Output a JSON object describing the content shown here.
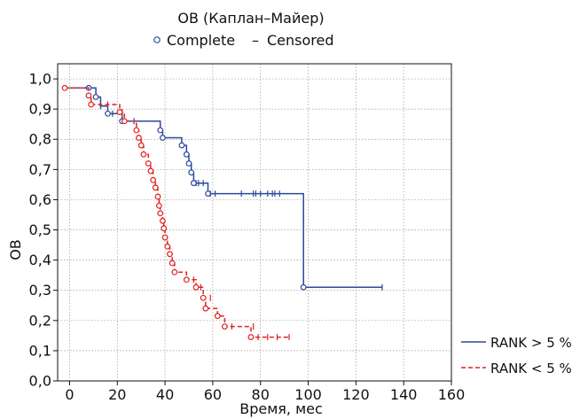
{
  "chart_data": {
    "type": "line",
    "title": "ОВ (Каплан–Майер)",
    "legend_top": {
      "complete_marker": "○",
      "complete_label": "Complete",
      "censored_marker": "–",
      "censored_label": "Censored"
    },
    "xlabel": "Время, мес",
    "ylabel": "ОВ",
    "xlim": [
      -5,
      160
    ],
    "ylim": [
      0,
      1.05
    ],
    "x_ticks": [
      0,
      20,
      40,
      60,
      80,
      100,
      120,
      140,
      160
    ],
    "x_tick_labels": [
      "0",
      "20",
      "40",
      "60",
      "80",
      "100",
      "120",
      "140",
      "160"
    ],
    "y_ticks": [
      0,
      0.1,
      0.2,
      0.3,
      0.4,
      0.5,
      0.6,
      0.7,
      0.8,
      0.9,
      1.0
    ],
    "y_tick_labels": [
      "0,0",
      "0,1",
      "0,2",
      "0,3",
      "0,4",
      "0,5",
      "0,6",
      "0,7",
      "0,8",
      "0,9",
      "1,0"
    ],
    "grid": true,
    "legend_position": "bottom-right",
    "series": [
      {
        "name": "RANK > 5 %",
        "color": "#2b4a9a",
        "dash": "solid",
        "steps": [
          [
            0,
            0.97
          ],
          [
            11,
            0.94
          ],
          [
            13,
            0.91
          ],
          [
            16,
            0.885
          ],
          [
            21,
            0.885
          ],
          [
            22,
            0.86
          ],
          [
            38,
            0.83
          ],
          [
            39,
            0.805
          ],
          [
            47,
            0.78
          ],
          [
            49,
            0.75
          ],
          [
            50,
            0.72
          ],
          [
            51,
            0.69
          ],
          [
            52,
            0.655
          ],
          [
            56,
            0.655
          ],
          [
            58,
            0.62
          ],
          [
            98,
            0.62
          ],
          [
            98,
            0.31
          ],
          [
            131,
            0.31
          ]
        ],
        "events": [
          [
            8,
            0.97
          ],
          [
            11,
            0.94
          ],
          [
            16,
            0.885
          ],
          [
            22,
            0.86
          ],
          [
            38,
            0.83
          ],
          [
            39,
            0.805
          ],
          [
            47,
            0.78
          ],
          [
            49,
            0.75
          ],
          [
            50,
            0.72
          ],
          [
            51,
            0.69
          ],
          [
            52,
            0.655
          ],
          [
            58,
            0.62
          ],
          [
            98,
            0.31
          ]
        ],
        "censored": [
          [
            13,
            0.91
          ],
          [
            18,
            0.885
          ],
          [
            27,
            0.86
          ],
          [
            53,
            0.655
          ],
          [
            54,
            0.655
          ],
          [
            56,
            0.655
          ],
          [
            59,
            0.62
          ],
          [
            61,
            0.62
          ],
          [
            72,
            0.62
          ],
          [
            77,
            0.62
          ],
          [
            78,
            0.62
          ],
          [
            80,
            0.62
          ],
          [
            83,
            0.62
          ],
          [
            85,
            0.62
          ],
          [
            86,
            0.62
          ],
          [
            88,
            0.62
          ],
          [
            131,
            0.31
          ]
        ]
      },
      {
        "name": "RANK < 5 %",
        "color": "#e02020",
        "dash": "dashed",
        "steps": [
          [
            -2,
            0.97
          ],
          [
            8,
            0.945
          ],
          [
            9,
            0.915
          ],
          [
            21,
            0.89
          ],
          [
            23,
            0.86
          ],
          [
            28,
            0.83
          ],
          [
            29,
            0.805
          ],
          [
            30,
            0.78
          ],
          [
            31,
            0.75
          ],
          [
            33,
            0.72
          ],
          [
            34,
            0.695
          ],
          [
            35,
            0.665
          ],
          [
            36,
            0.64
          ],
          [
            37,
            0.61
          ],
          [
            37.5,
            0.58
          ],
          [
            38,
            0.555
          ],
          [
            39,
            0.53
          ],
          [
            39.5,
            0.505
          ],
          [
            40,
            0.475
          ],
          [
            41,
            0.445
          ],
          [
            42,
            0.42
          ],
          [
            43,
            0.39
          ],
          [
            44,
            0.36
          ],
          [
            49,
            0.335
          ],
          [
            53,
            0.31
          ],
          [
            56,
            0.275
          ],
          [
            57,
            0.24
          ],
          [
            62,
            0.215
          ],
          [
            65,
            0.18
          ],
          [
            76,
            0.145
          ],
          [
            92,
            0.145
          ]
        ],
        "events": [
          [
            -2,
            0.97
          ],
          [
            8,
            0.945
          ],
          [
            9,
            0.915
          ],
          [
            21,
            0.89
          ],
          [
            23,
            0.86
          ],
          [
            28,
            0.83
          ],
          [
            29,
            0.805
          ],
          [
            30,
            0.78
          ],
          [
            31,
            0.75
          ],
          [
            33,
            0.72
          ],
          [
            34,
            0.695
          ],
          [
            35,
            0.665
          ],
          [
            36,
            0.64
          ],
          [
            37,
            0.61
          ],
          [
            37.5,
            0.58
          ],
          [
            38,
            0.555
          ],
          [
            39,
            0.53
          ],
          [
            39.5,
            0.505
          ],
          [
            40,
            0.475
          ],
          [
            41,
            0.445
          ],
          [
            42,
            0.42
          ],
          [
            43,
            0.39
          ],
          [
            44,
            0.36
          ],
          [
            49,
            0.335
          ],
          [
            53,
            0.31
          ],
          [
            56,
            0.275
          ],
          [
            57,
            0.24
          ],
          [
            62,
            0.215
          ],
          [
            65,
            0.18
          ],
          [
            76,
            0.145
          ]
        ],
        "censored": [
          [
            16,
            0.915
          ],
          [
            22,
            0.89
          ],
          [
            52,
            0.335
          ],
          [
            55,
            0.31
          ],
          [
            59,
            0.275
          ],
          [
            68,
            0.18
          ],
          [
            77,
            0.18
          ],
          [
            79,
            0.145
          ],
          [
            83,
            0.145
          ],
          [
            87,
            0.145
          ],
          [
            92,
            0.145
          ]
        ]
      }
    ]
  }
}
